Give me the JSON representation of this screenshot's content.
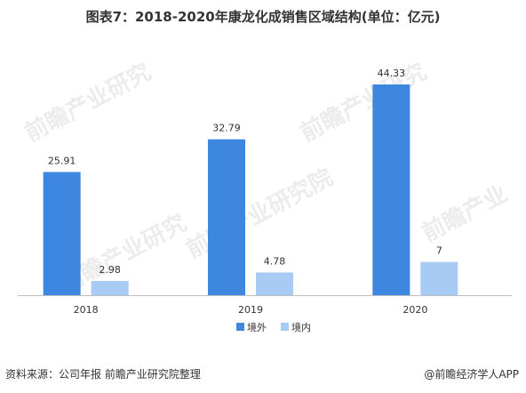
{
  "title": "图表7：2018-2020年康龙化成销售区域结构(单位：亿元)",
  "chart_data": {
    "type": "bar",
    "categories": [
      "2018",
      "2019",
      "2020"
    ],
    "series": [
      {
        "name": "境外",
        "values": [
          25.91,
          32.79,
          44.33
        ],
        "labels": [
          "25.91",
          "32.79",
          "44.33"
        ],
        "color": "#3d87e0"
      },
      {
        "name": "境内",
        "values": [
          2.98,
          4.78,
          7
        ],
        "labels": [
          "2.98",
          "4.78",
          "7"
        ],
        "color": "#a8cbf3"
      }
    ],
    "ylim": [
      0,
      49
    ],
    "grid": false,
    "legend_position": "bottom-center"
  },
  "watermark_text": "前瞻产业研究院",
  "footer": {
    "source": "资料来源：公司年报 前瞻产业研究院整理",
    "brand": "@前瞻经济学人APP"
  }
}
